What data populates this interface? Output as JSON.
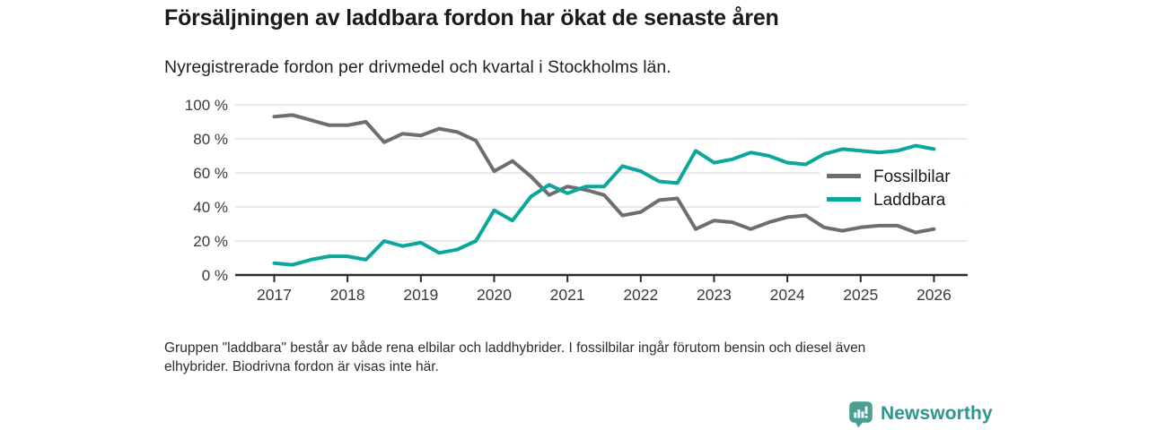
{
  "header": {
    "title": "Försäljningen av laddbara fordon har ökat de senaste åren",
    "subtitle": "Nyregistrerade fordon per drivmedel och kvartal i Stockholms län."
  },
  "footer": {
    "line1": "Gruppen \"laddbara\" består av både rena elbilar och laddhybrider. I fossilbilar ingår förutom bensin och diesel även",
    "line2": "elhybrider. Biodrivna fordon är visas inte här."
  },
  "logo": {
    "text": "Newsworthy",
    "icon": "bar-chart-pin-icon",
    "icon_color": "#4a9f95",
    "text_color": "#2d968d"
  },
  "chart_data": {
    "type": "line",
    "title": "Försäljningen av laddbara fordon har ökat de senaste åren",
    "subtitle": "Nyregistrerade fordon per drivmedel och kvartal i Stockholms län.",
    "x_unit": "quarter",
    "x_start": "2017-Q1",
    "x_end": "2026-Q1",
    "xticks": [
      "2017",
      "2018",
      "2019",
      "2020",
      "2021",
      "2022",
      "2023",
      "2024",
      "2025",
      "2026"
    ],
    "yticks": [
      "0 %",
      "20 %",
      "40 %",
      "60 %",
      "80 %",
      "100 %"
    ],
    "y_gridlines": [
      20,
      40,
      60,
      80,
      100
    ],
    "ylim": [
      0,
      100
    ],
    "grid": true,
    "legend_position": "inside-right",
    "colors": {
      "grid": "#dcdcdc",
      "axis": "#2b2b2b",
      "tick_text": "#3b3b3b",
      "legend_text": "#1a1a1a",
      "background": "#ffffff"
    },
    "series": [
      {
        "name": "Fossilbilar",
        "color": "#6e6e70",
        "values": [
          93,
          94,
          91,
          88,
          88,
          90,
          78,
          83,
          82,
          86,
          84,
          79,
          61,
          67,
          58,
          47,
          52,
          50,
          47,
          35,
          37,
          44,
          45,
          27,
          32,
          31,
          27,
          31,
          34,
          35,
          28,
          26,
          28,
          29,
          29,
          25,
          27
        ]
      },
      {
        "name": "Laddbara",
        "color": "#0aa79c",
        "values": [
          7,
          6,
          9,
          11,
          11,
          9,
          20,
          17,
          19,
          13,
          15,
          20,
          38,
          32,
          46,
          53,
          48,
          52,
          52,
          64,
          61,
          55,
          54,
          73,
          66,
          68,
          72,
          70,
          66,
          65,
          71,
          74,
          73,
          72,
          73,
          76,
          74
        ]
      }
    ]
  }
}
